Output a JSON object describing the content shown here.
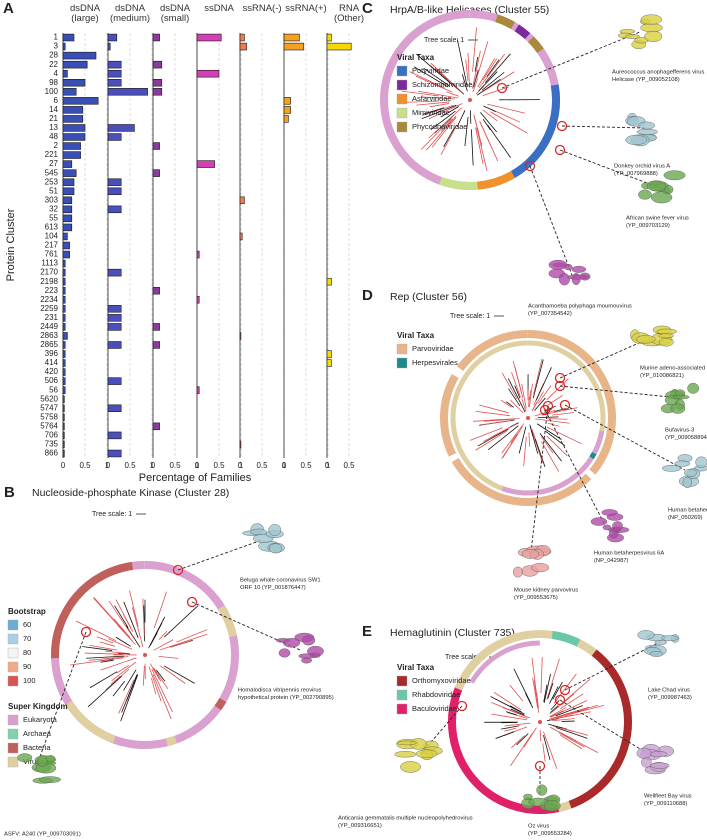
{
  "chart_data": {
    "type": "bar",
    "orientation": "horizontal",
    "panel_label": "A",
    "xlabel": "Percentage of Families",
    "ylabel": "Protein Cluster",
    "grid": true,
    "categories": [
      "1",
      "3",
      "28",
      "22",
      "4",
      "98",
      "100",
      "6",
      "14",
      "21",
      "13",
      "48",
      "2",
      "221",
      "27",
      "545",
      "253",
      "51",
      "303",
      "32",
      "55",
      "613",
      "104",
      "217",
      "761",
      "1113",
      "2170",
      "2198",
      "223",
      "2234",
      "2259",
      "231",
      "2449",
      "2863",
      "2865",
      "396",
      "414",
      "420",
      "506",
      "56",
      "5620",
      "5747",
      "5758",
      "5764",
      "706",
      "735",
      "866"
    ],
    "series": [
      {
        "name": "dsDNA (large)",
        "color": "#3a4fb5",
        "xlim": [
          0,
          1
        ],
        "xticks": [
          0,
          0.5,
          1
        ],
        "values": [
          0.25,
          0.05,
          0.75,
          0.55,
          0.1,
          0.5,
          0.3,
          0.8,
          0.45,
          0.45,
          0.5,
          0.5,
          0.4,
          0.4,
          0.2,
          0.3,
          0.25,
          0.25,
          0.2,
          0.2,
          0.2,
          0.2,
          0.1,
          0.15,
          0.15,
          0.05,
          0.05,
          0.05,
          0.05,
          0.05,
          0.05,
          0.05,
          0.05,
          0.1,
          0.05,
          0.05,
          0.05,
          0.05,
          0.05,
          0.05,
          0.03,
          0.03,
          0.03,
          0.03,
          0.03,
          0.03,
          0.03
        ]
      },
      {
        "name": "dsDNA (medium)",
        "color": "#4b4fba",
        "xlim": [
          0,
          1
        ],
        "xticks": [
          0,
          0.5,
          1
        ],
        "values": [
          0.2,
          0.05,
          0,
          0.3,
          0.3,
          0.3,
          0.9,
          0,
          0,
          0,
          0.6,
          0.3,
          0,
          0,
          0,
          0,
          0.3,
          0.3,
          0,
          0.3,
          0,
          0,
          0,
          0,
          0,
          0,
          0.3,
          0,
          0,
          0,
          0.3,
          0.3,
          0.3,
          0,
          0.3,
          0,
          0,
          0,
          0.3,
          0,
          0,
          0.3,
          0,
          0,
          0.3,
          0,
          0.3
        ]
      },
      {
        "name": "dsDNA (small)",
        "color": "#8c3a9c",
        "xlim": [
          0,
          1
        ],
        "xticks": [
          0,
          0.5,
          1
        ],
        "values": [
          0.15,
          0,
          0,
          0.2,
          0,
          0.2,
          0.2,
          0,
          0,
          0,
          0,
          0,
          0.15,
          0,
          0,
          0.15,
          0,
          0,
          0,
          0,
          0,
          0,
          0,
          0,
          0,
          0,
          0,
          0,
          0.15,
          0,
          0,
          0,
          0.15,
          0,
          0.15,
          0,
          0,
          0,
          0,
          0,
          0,
          0,
          0,
          0.15,
          0,
          0,
          0
        ]
      },
      {
        "name": "ssDNA",
        "color": "#d43fb4",
        "xlim": [
          0,
          1
        ],
        "xticks": [
          0,
          0.5,
          1
        ],
        "values": [
          0.55,
          0,
          0,
          0,
          0.5,
          0,
          0,
          0,
          0,
          0,
          0,
          0,
          0,
          0,
          0.4,
          0,
          0,
          0,
          0,
          0,
          0,
          0,
          0,
          0,
          0.05,
          0,
          0,
          0,
          0,
          0.05,
          0,
          0,
          0,
          0,
          0,
          0,
          0,
          0,
          0,
          0.05,
          0,
          0,
          0,
          0,
          0,
          0,
          0
        ]
      },
      {
        "name": "ssRNA(-)",
        "color": "#f07a4a",
        "xlim": [
          0,
          1
        ],
        "xticks": [
          0,
          0.5,
          1
        ],
        "values": [
          0.1,
          0.15,
          0,
          0,
          0,
          0,
          0,
          0,
          0,
          0,
          0,
          0,
          0,
          0,
          0,
          0,
          0,
          0,
          0.1,
          0,
          0,
          0,
          0.05,
          0,
          0,
          0,
          0,
          0,
          0,
          0,
          0,
          0,
          0,
          0.02,
          0,
          0,
          0,
          0,
          0,
          0,
          0,
          0,
          0,
          0,
          0,
          0.02,
          0
        ]
      },
      {
        "name": "ssRNA(+)",
        "color": "#f5a021",
        "xlim": [
          0,
          1
        ],
        "xticks": [
          0,
          0.5,
          1
        ],
        "values": [
          0.35,
          0.45,
          0,
          0,
          0,
          0,
          0,
          0.15,
          0.15,
          0.1,
          0,
          0,
          0,
          0,
          0,
          0,
          0,
          0,
          0,
          0,
          0,
          0,
          0,
          0,
          0,
          0,
          0,
          0,
          0,
          0,
          0,
          0,
          0,
          0,
          0,
          0,
          0,
          0,
          0,
          0,
          0,
          0,
          0,
          0,
          0,
          0,
          0
        ]
      },
      {
        "name": "RNA (Other)",
        "color": "#f5d800",
        "xlim": [
          0,
          1
        ],
        "xticks": [
          0,
          0.5
        ],
        "values": [
          0.1,
          0.55,
          0,
          0,
          0,
          0,
          0,
          0,
          0,
          0,
          0,
          0,
          0,
          0,
          0,
          0,
          0,
          0,
          0,
          0,
          0,
          0,
          0,
          0,
          0,
          0,
          0,
          0.1,
          0,
          0,
          0,
          0,
          0,
          0,
          0,
          0.1,
          0.1,
          0,
          0,
          0,
          0,
          0,
          0,
          0,
          0,
          0,
          0
        ]
      }
    ]
  },
  "tree_panels": [
    {
      "label": "B",
      "title": "Nucleoside-phosphate Kinase (Cluster 28)",
      "tree_scale": "Tree scale: 1",
      "legends": [
        {
          "title": "Bootstrap",
          "items": [
            {
              "name": "60",
              "color": "#6aaed6"
            },
            {
              "name": "70",
              "color": "#a8cfe6"
            },
            {
              "name": "80",
              "color": "#f4f4f4"
            },
            {
              "name": "90",
              "color": "#f2a98a"
            },
            {
              "name": "100",
              "color": "#d9534f"
            }
          ]
        },
        {
          "title": "Super Kingdom",
          "items": [
            {
              "name": "Eukaryota",
              "color": "#d9a0d0"
            },
            {
              "name": "Archaea",
              "color": "#7fd1b0"
            },
            {
              "name": "Bacteria",
              "color": "#c0605a"
            },
            {
              "name": "Viruses",
              "color": "#e0cfa0"
            }
          ]
        }
      ],
      "structures": [
        {
          "lines": [
            "Beluga whale coronavirus SW1",
            "ORF 10 (YP_001876447)"
          ]
        },
        {
          "lines": [
            "Homalodisca vitripennis reovirus",
            "hypothetical protein (YP_002790895)"
          ]
        },
        {
          "lines": [
            "ASFV: A240 (YP_009703091)"
          ]
        }
      ]
    },
    {
      "label": "C",
      "title": "HrpA/B-like Helicases (Cluster 55)",
      "tree_scale": "Tree scale: 1",
      "legends": [
        {
          "title": "Viral Taxa",
          "items": [
            {
              "name": "Potyviridae",
              "color": "#3b6fc4"
            },
            {
              "name": "Schizomimiviridae",
              "color": "#7a2a9a"
            },
            {
              "name": "Asfarviridae",
              "color": "#f0922a"
            },
            {
              "name": "Mimiviridae",
              "color": "#c8e08a"
            },
            {
              "name": "Phycodnaviridae",
              "color": "#a88a3a"
            }
          ]
        }
      ],
      "structures": [
        {
          "lines": [
            "Aureococcus anophagefferens virus",
            "Helicase (YP_009052108)"
          ]
        },
        {
          "lines": [
            "Donkey orchid virus A",
            "(YP_007969888)"
          ]
        },
        {
          "lines": [
            "African swine fever virus",
            "(YP_009703129)"
          ]
        },
        {
          "lines": [
            "Acanthamoeba polyphaga moumouvirus",
            "(YP_007354542)"
          ]
        }
      ]
    },
    {
      "label": "D",
      "title": "Rep (Cluster 56)",
      "tree_scale": "Tree scale: 1",
      "legends": [
        {
          "title": "Viral Taxa",
          "items": [
            {
              "name": "Parvoviridae",
              "color": "#e8b48a"
            },
            {
              "name": "Herpesvirales",
              "color": "#1a8a8a"
            }
          ]
        }
      ],
      "structures": [
        {
          "lines": [
            "Murine adeno-associated virus 2",
            "(YP_010086821)"
          ]
        },
        {
          "lines": [
            "Bufavirus-3",
            "(YP_009058894)"
          ]
        },
        {
          "lines": [
            "Human betaherpesvirus 6B",
            "(NP_050269)"
          ]
        },
        {
          "lines": [
            "Human betaherpesvirus 6A",
            "(NP_042987)"
          ]
        },
        {
          "lines": [
            "Mouse kidney parvovirus",
            "(YP_009553675)"
          ]
        }
      ]
    },
    {
      "label": "E",
      "title": "Hemaglutinin (Cluster 735)",
      "tree_scale": "Tree scale: 1",
      "legends": [
        {
          "title": "Viral Taxa",
          "items": [
            {
              "name": "Orthomyxoviridae",
              "color": "#a82a2a"
            },
            {
              "name": "Rhabdoviridae",
              "color": "#6ac8a8"
            },
            {
              "name": "Baculoviridae",
              "color": "#e0206a"
            }
          ]
        }
      ],
      "structures": [
        {
          "lines": [
            "Lake Chad virus",
            "(YP_009987463)"
          ]
        },
        {
          "lines": [
            "Wellfleet Bay virus",
            "(YP_009110688)"
          ]
        },
        {
          "lines": [
            "Oz virus",
            "(YP_009553284)"
          ]
        },
        {
          "lines": [
            "Anticarsia gemmatalis multiple nucleopolyhedrovirus",
            "(YP_009316651)"
          ]
        }
      ]
    }
  ]
}
